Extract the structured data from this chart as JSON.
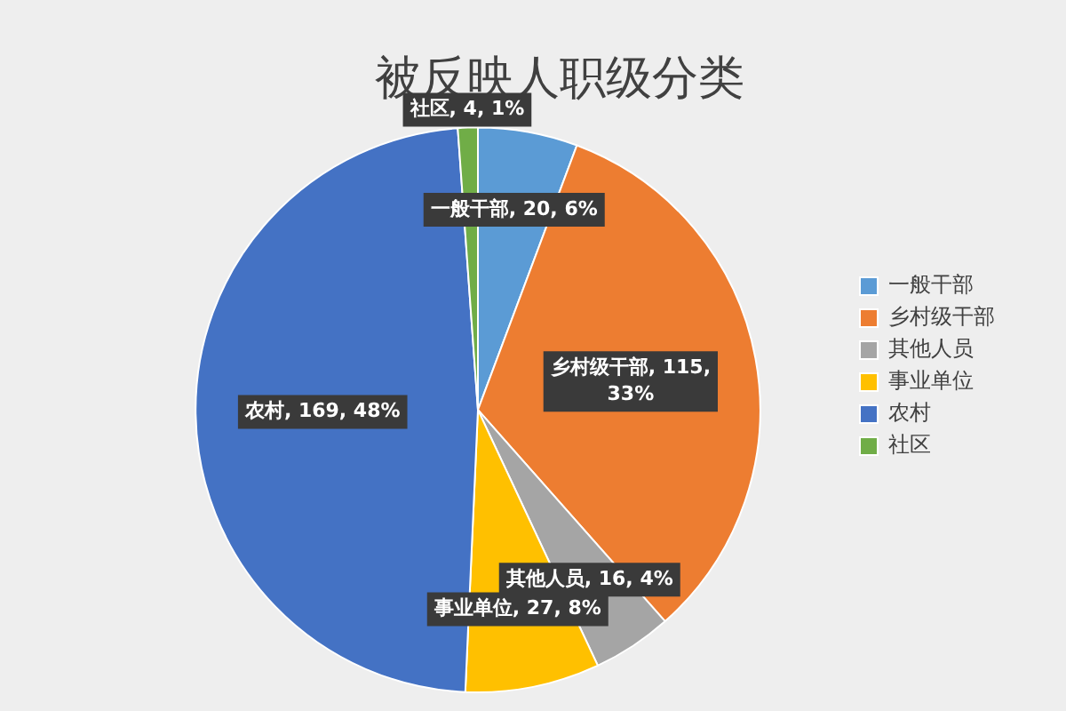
{
  "chart_data": {
    "type": "pie",
    "title": "被反映人职级分类",
    "categories": [
      "一般干部",
      "乡村级干部",
      "其他人员",
      "事业单位",
      "农村",
      "社区"
    ],
    "values": [
      20,
      115,
      16,
      27,
      169,
      4
    ],
    "colors": [
      "#5b9bd5",
      "#ed7d31",
      "#a5a5a5",
      "#ffc000",
      "#4472c4",
      "#70ad47"
    ],
    "value_labels": [
      "一般干部, 20, 6%",
      "乡村级干部, 115, 33%",
      "其他人员, 16, 4%",
      "事业单位, 27, 8%",
      "农村, 169, 48%",
      "社区, 4, 1%"
    ],
    "legend": "right"
  }
}
